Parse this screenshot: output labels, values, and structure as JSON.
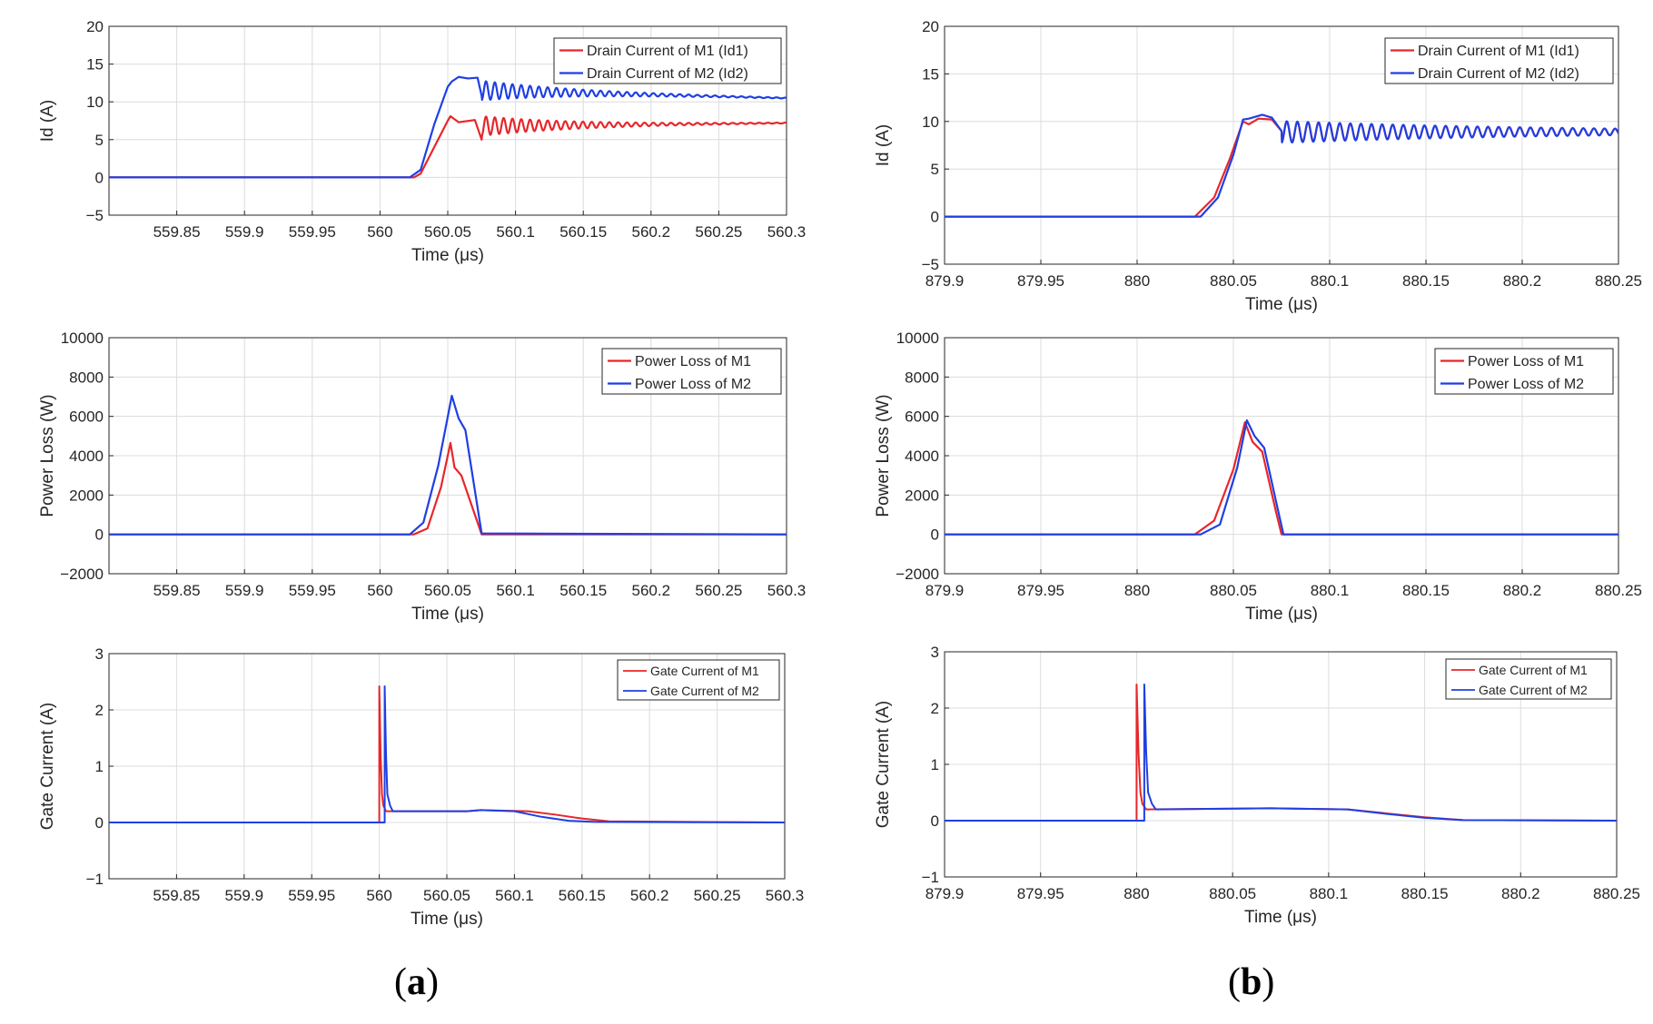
{
  "captions": {
    "a": {
      "open": "(",
      "letter": "a",
      "close": ")"
    },
    "b": {
      "open": "(",
      "letter": "b",
      "close": ")"
    }
  },
  "colors": {
    "m1": "#e8262a",
    "m2": "#1f3fe3",
    "grid": "#dcdcdc",
    "axis": "#262626"
  },
  "chart_data": [
    {
      "id": "a-drain",
      "type": "line",
      "ylabel": "Id (A)",
      "xlabel": "Time (μs)",
      "xlim": [
        559.8,
        560.3
      ],
      "ylim": [
        -5,
        20
      ],
      "xticks": [
        559.85,
        559.9,
        559.95,
        560,
        560.05,
        560.1,
        560.15,
        560.2,
        560.25,
        560.3
      ],
      "xticklabels": [
        "559.85",
        "559.9",
        "559.95",
        "560",
        "560.05",
        "560.1",
        "560.15",
        "560.2",
        "560.25",
        "560.3"
      ],
      "yticks": [
        -5,
        0,
        5,
        10,
        15,
        20
      ],
      "yticklabels": [
        "−5",
        "0",
        "5",
        "10",
        "15",
        "20"
      ],
      "legend": [
        "Drain Current of M1 (Id1)",
        "Drain Current of M2 (Id2)"
      ],
      "series": [
        {
          "name": "Drain Current of M1 (Id1)",
          "color": "m1",
          "x": [
            559.8,
            560.025,
            560.03,
            560.04,
            560.05,
            560.052,
            560.058,
            560.07,
            560.075
          ],
          "y": [
            0,
            0,
            0.5,
            4,
            7.5,
            8.1,
            7.3,
            7.6,
            5.0
          ],
          "osc": {
            "start": 560.075,
            "end": 560.3,
            "base": 6.8,
            "amp": 1.3,
            "period": 0.0065,
            "decay": 3.2,
            "settle": 7.2
          }
        },
        {
          "name": "Drain Current of M2 (Id2)",
          "color": "m2",
          "x": [
            559.8,
            560.022,
            560.03,
            560.04,
            560.05,
            560.053,
            560.058,
            560.065,
            560.072,
            560.075
          ],
          "y": [
            0,
            0,
            1,
            7,
            12,
            12.7,
            13.3,
            13.1,
            13.2,
            10.8
          ],
          "osc": {
            "start": 560.075,
            "end": 560.3,
            "base": 11.5,
            "amp": 1.3,
            "period": 0.0065,
            "decay": 3.2,
            "settle": 10.5
          }
        }
      ]
    },
    {
      "id": "a-power",
      "type": "line",
      "ylabel": "Power Loss (W)",
      "xlabel": "Time (μs)",
      "xlim": [
        559.8,
        560.3
      ],
      "ylim": [
        -2000,
        10000
      ],
      "xticks": [
        559.85,
        559.9,
        559.95,
        560,
        560.05,
        560.1,
        560.15,
        560.2,
        560.25,
        560.3
      ],
      "xticklabels": [
        "559.85",
        "559.9",
        "559.95",
        "560",
        "560.05",
        "560.1",
        "560.15",
        "560.2",
        "560.25",
        "560.3"
      ],
      "yticks": [
        -2000,
        0,
        2000,
        4000,
        6000,
        8000,
        10000
      ],
      "yticklabels": [
        "−2000",
        "0",
        "2000",
        "4000",
        "6000",
        "8000",
        "10000"
      ],
      "legend": [
        "Power Loss of M1",
        "Power Loss of M2"
      ],
      "series": [
        {
          "name": "Power Loss of M1",
          "color": "m1",
          "x": [
            559.8,
            560.025,
            560.035,
            560.045,
            560.052,
            560.055,
            560.06,
            560.075,
            560.3
          ],
          "y": [
            0,
            0,
            300,
            2400,
            4650,
            3400,
            3000,
            0,
            0
          ]
        },
        {
          "name": "Power Loss of M2",
          "color": "m2",
          "x": [
            559.8,
            560.022,
            560.032,
            560.043,
            560.053,
            560.058,
            560.063,
            560.075,
            560.3
          ],
          "y": [
            0,
            0,
            600,
            3500,
            7050,
            5900,
            5300,
            50,
            0
          ]
        }
      ]
    },
    {
      "id": "a-gate",
      "type": "line",
      "ylabel": "Gate Current (A)",
      "xlabel": "Time (μs)",
      "xlim": [
        559.8,
        560.3
      ],
      "ylim": [
        -1,
        3
      ],
      "xticks": [
        559.85,
        559.9,
        559.95,
        560,
        560.05,
        560.1,
        560.15,
        560.2,
        560.25,
        560.3
      ],
      "xticklabels": [
        "559.85",
        "559.9",
        "559.95",
        "560",
        "560.05",
        "560.1",
        "560.15",
        "560.2",
        "560.25",
        "560.3"
      ],
      "yticks": [
        -1,
        0,
        1,
        2,
        3
      ],
      "yticklabels": [
        "−1",
        "0",
        "1",
        "2",
        "3"
      ],
      "legend": [
        "Gate Current of M1",
        "Gate Current of M2"
      ],
      "series": [
        {
          "name": "Gate Current of M1",
          "color": "m1",
          "x": [
            559.8,
            560,
            560,
            560.001,
            560.002,
            560.003,
            560.005,
            560.065,
            560.075,
            560.11,
            560.13,
            560.15,
            560.17,
            560.3
          ],
          "y": [
            0,
            0,
            2.42,
            1.2,
            0.5,
            0.3,
            0.2,
            0.2,
            0.22,
            0.2,
            0.14,
            0.07,
            0.02,
            0
          ]
        },
        {
          "name": "Gate Current of M2",
          "color": "m2",
          "x": [
            559.8,
            560.004,
            560.004,
            560.005,
            560.006,
            560.008,
            560.01,
            560.065,
            560.075,
            560.1,
            560.12,
            560.14,
            560.16,
            560.3
          ],
          "y": [
            0,
            0,
            2.42,
            1.2,
            0.5,
            0.3,
            0.2,
            0.2,
            0.22,
            0.2,
            0.1,
            0.03,
            0.01,
            0
          ]
        }
      ]
    },
    {
      "id": "b-drain",
      "type": "line",
      "ylabel": "Id (A)",
      "xlabel": "Time (μs)",
      "xlim": [
        879.9,
        880.25
      ],
      "ylim": [
        -5,
        20
      ],
      "xticks": [
        879.9,
        879.95,
        880,
        880.05,
        880.1,
        880.15,
        880.2,
        880.25
      ],
      "xticklabels": [
        "879.9",
        "879.95",
        "880",
        "880.05",
        "880.1",
        "880.15",
        "880.2",
        "880.25"
      ],
      "yticks": [
        -5,
        0,
        5,
        10,
        15,
        20
      ],
      "yticklabels": [
        "−5",
        "0",
        "5",
        "10",
        "15",
        "20"
      ],
      "legend": [
        "Drain Current of M1 (Id1)",
        "Drain Current of M2 (Id2)"
      ],
      "series": [
        {
          "name": "Drain Current of M1 (Id1)",
          "color": "m1",
          "x": [
            879.9,
            880.03,
            880.04,
            880.048,
            880.055,
            880.058,
            880.063,
            880.07,
            880.075
          ],
          "y": [
            0,
            0,
            2,
            6,
            10,
            9.7,
            10.3,
            10.2,
            9.0
          ],
          "osc": {
            "start": 880.075,
            "end": 880.25,
            "base": 8.9,
            "amp": 1.1,
            "period": 0.0055,
            "decay": 1.2,
            "settle": 8.9
          }
        },
        {
          "name": "Drain Current of M2 (Id2)",
          "color": "m2",
          "x": [
            879.9,
            880.033,
            880.042,
            880.05,
            880.055,
            880.058,
            880.065,
            880.07,
            880.075
          ],
          "y": [
            0,
            0,
            2,
            6.5,
            10.2,
            10.3,
            10.7,
            10.4,
            9.0
          ],
          "osc": {
            "start": 880.075,
            "end": 880.25,
            "base": 8.9,
            "amp": 1.15,
            "period": 0.0055,
            "decay": 1.2,
            "settle": 8.9
          }
        }
      ]
    },
    {
      "id": "b-power",
      "type": "line",
      "ylabel": "Power Loss (W)",
      "xlabel": "Time (μs)",
      "xlim": [
        879.9,
        880.25
      ],
      "ylim": [
        -2000,
        10000
      ],
      "xticks": [
        879.9,
        879.95,
        880,
        880.05,
        880.1,
        880.15,
        880.2,
        880.25
      ],
      "xticklabels": [
        "879.9",
        "879.95",
        "880",
        "880.05",
        "880.1",
        "880.15",
        "880.2",
        "880.25"
      ],
      "yticks": [
        -2000,
        0,
        2000,
        4000,
        6000,
        8000,
        10000
      ],
      "yticklabels": [
        "−2000",
        "0",
        "2000",
        "4000",
        "6000",
        "8000",
        "10000"
      ],
      "legend": [
        "Power Loss of M1",
        "Power Loss of M2"
      ],
      "series": [
        {
          "name": "Power Loss of M1",
          "color": "m1",
          "x": [
            879.9,
            880.03,
            880.04,
            880.05,
            880.056,
            880.06,
            880.065,
            880.072,
            880.075,
            880.25
          ],
          "y": [
            0,
            0,
            700,
            3300,
            5700,
            4700,
            4200,
            1200,
            0,
            0
          ]
        },
        {
          "name": "Power Loss of M2",
          "color": "m2",
          "x": [
            879.9,
            880.033,
            880.043,
            880.052,
            880.057,
            880.061,
            880.066,
            880.073,
            880.076,
            880.25
          ],
          "y": [
            0,
            0,
            500,
            3400,
            5800,
            5000,
            4400,
            1300,
            0,
            0
          ]
        }
      ]
    },
    {
      "id": "b-gate",
      "type": "line",
      "ylabel": "Gate Current (A)",
      "xlabel": "Time (μs)",
      "xlim": [
        879.9,
        880.25
      ],
      "ylim": [
        -1,
        3
      ],
      "xticks": [
        879.9,
        879.95,
        880,
        880.05,
        880.1,
        880.15,
        880.2,
        880.25
      ],
      "xticklabels": [
        "879.9",
        "879.95",
        "880",
        "880.05",
        "880.1",
        "880.15",
        "880.2",
        "880.25"
      ],
      "yticks": [
        -1,
        0,
        1,
        2,
        3
      ],
      "yticklabels": [
        "−1",
        "0",
        "1",
        "2",
        "3"
      ],
      "legend": [
        "Gate Current of M1",
        "Gate Current of M2"
      ],
      "series": [
        {
          "name": "Gate Current of M1",
          "color": "m1",
          "x": [
            879.9,
            880,
            880,
            880.001,
            880.002,
            880.003,
            880.005,
            880.07,
            880.11,
            880.13,
            880.15,
            880.17,
            880.25
          ],
          "y": [
            0,
            0,
            2.42,
            1.2,
            0.5,
            0.3,
            0.2,
            0.22,
            0.2,
            0.13,
            0.06,
            0.01,
            0
          ]
        },
        {
          "name": "Gate Current of M2",
          "color": "m2",
          "x": [
            879.9,
            880.004,
            880.004,
            880.005,
            880.006,
            880.008,
            880.01,
            880.07,
            880.11,
            880.13,
            880.15,
            880.17,
            880.25
          ],
          "y": [
            0,
            0,
            2.42,
            1.2,
            0.5,
            0.3,
            0.2,
            0.22,
            0.2,
            0.12,
            0.05,
            0.01,
            0
          ]
        }
      ]
    }
  ]
}
